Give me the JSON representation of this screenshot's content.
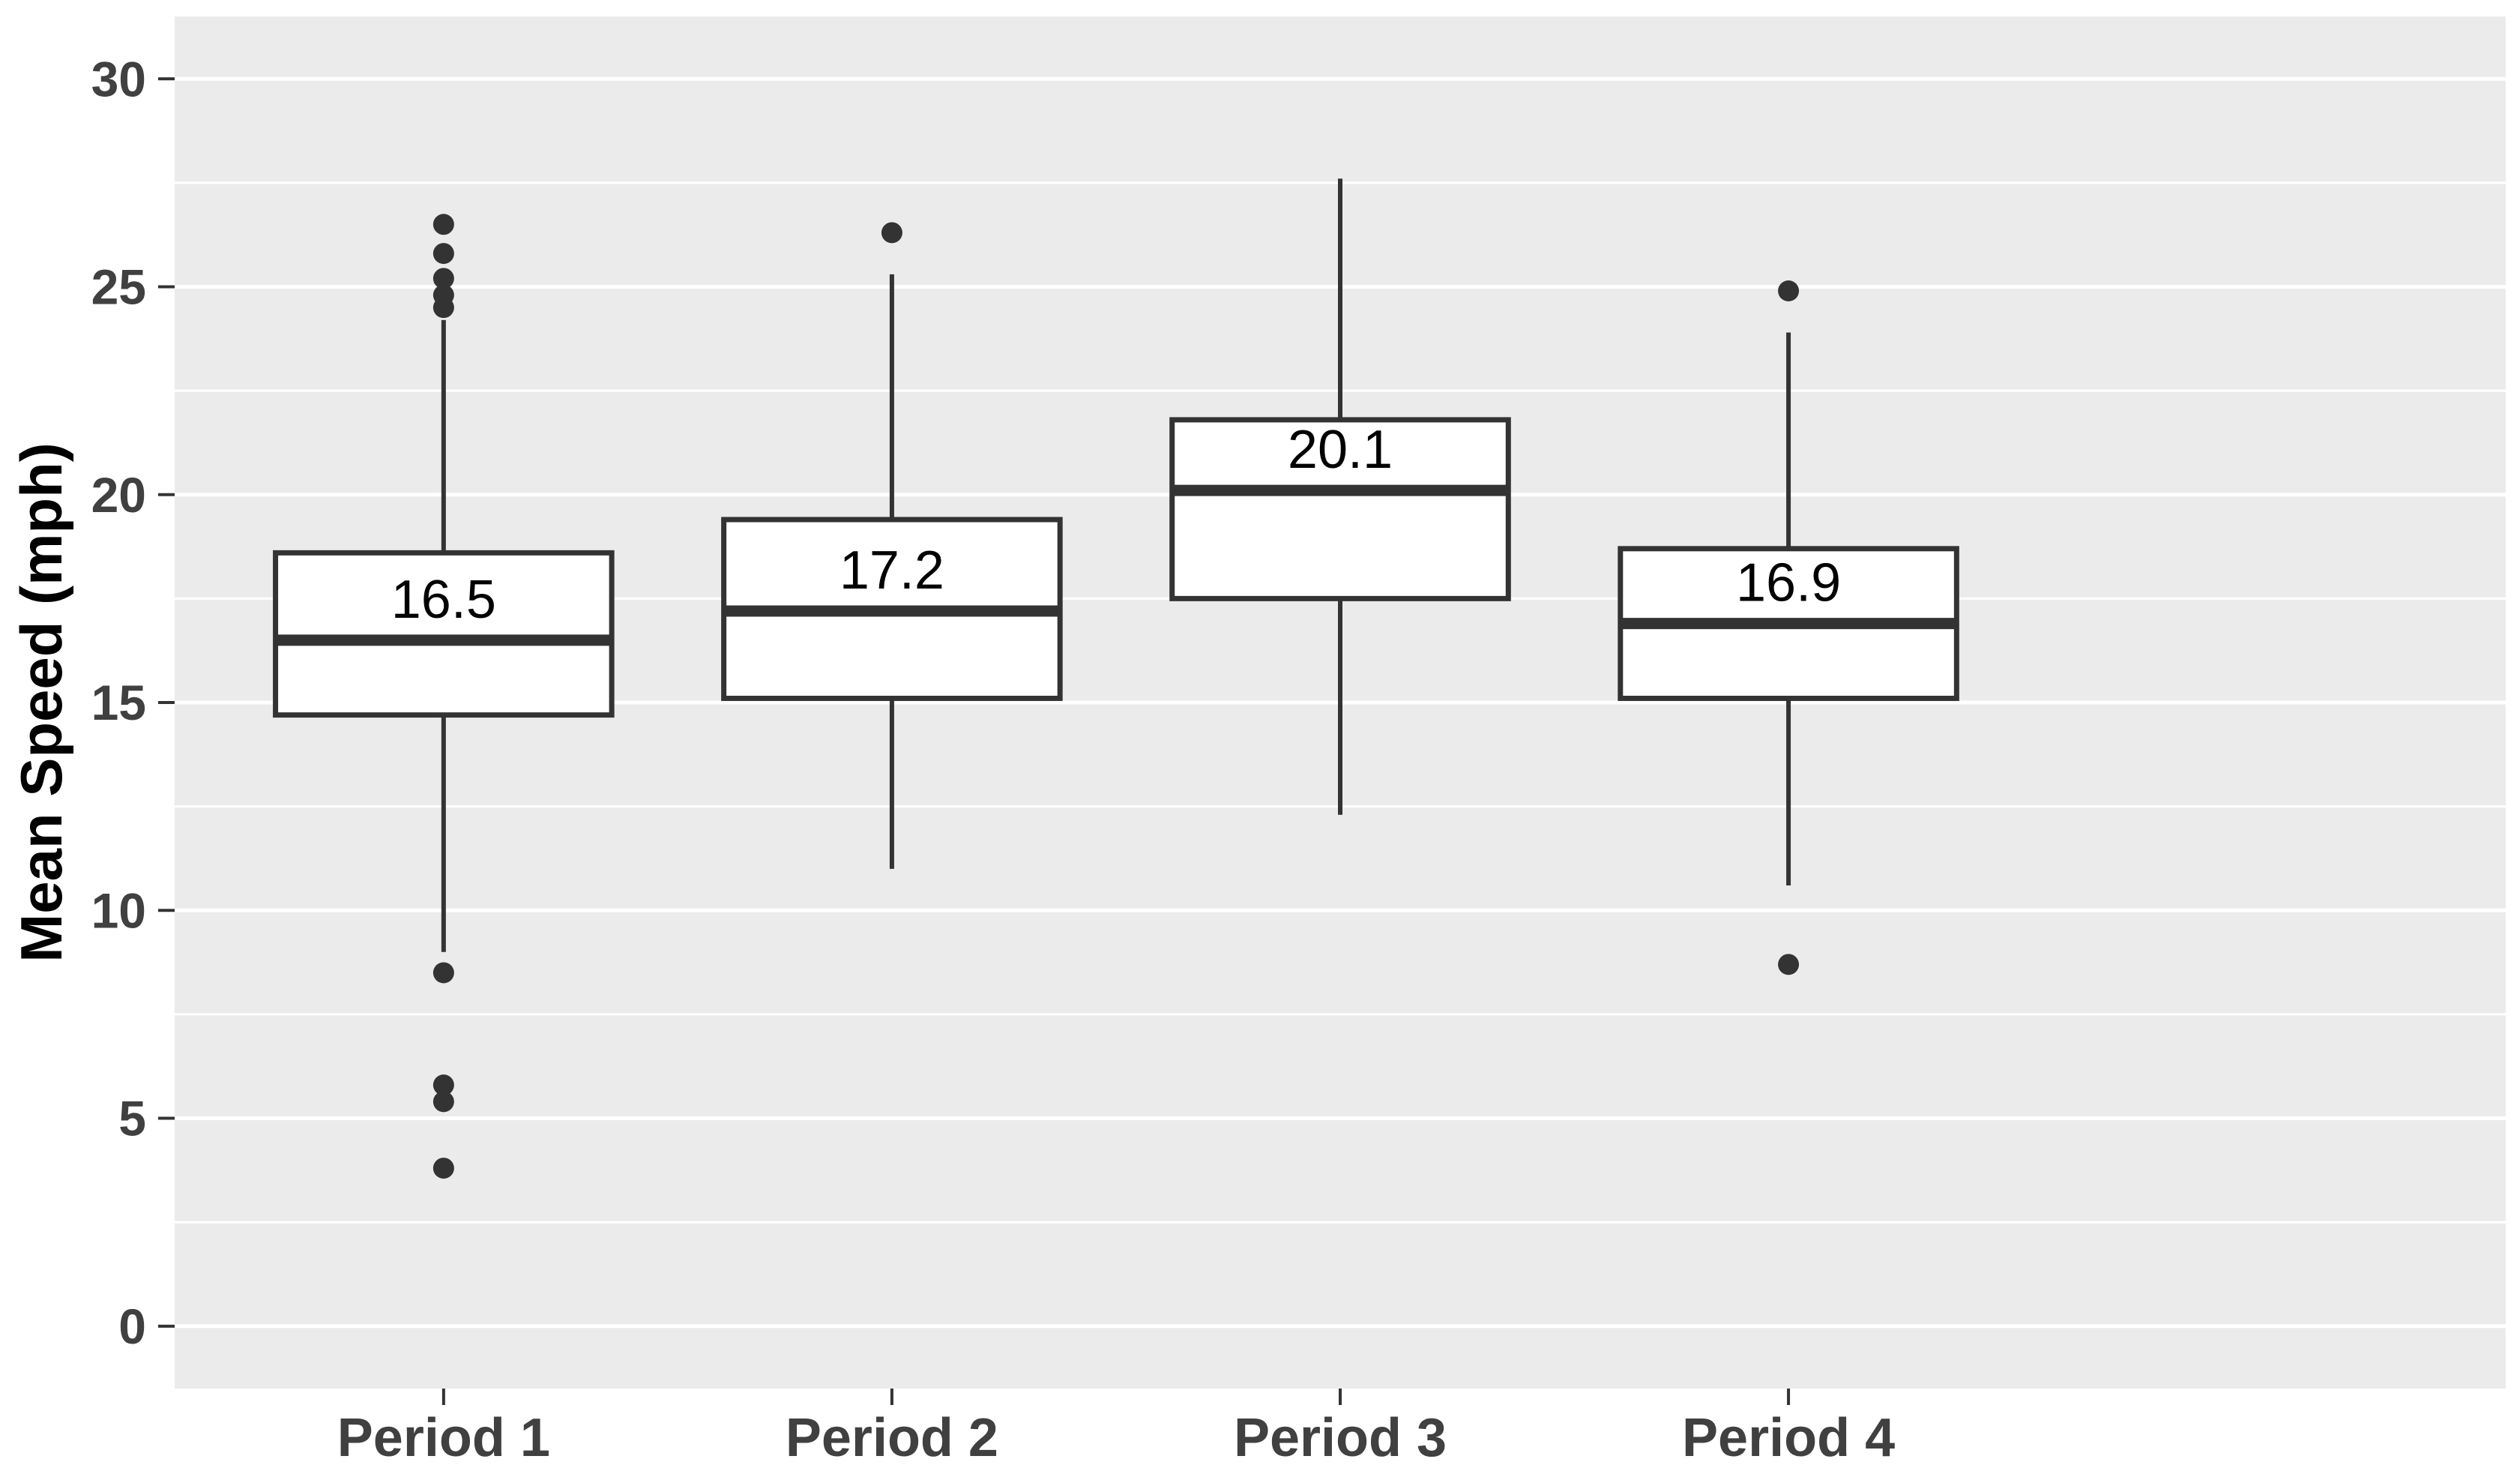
{
  "chart_data": {
    "type": "boxplot",
    "title": "",
    "xlabel": "",
    "ylabel": "Mean Speed (mph)",
    "categories": [
      "Period 1",
      "Period 2",
      "Period 3",
      "Period 4"
    ],
    "y_ticks": [
      0,
      5,
      10,
      15,
      20,
      25,
      30
    ],
    "y_minor_ticks": [
      2.5,
      7.5,
      12.5,
      17.5,
      22.5,
      27.5
    ],
    "ylim": [
      0,
      30
    ],
    "ylim_expanded": [
      -1.5,
      31.5
    ],
    "grid": "white major and minor horizontal gridlines on grey panel",
    "legend_position": "none",
    "series": [
      {
        "name": "Period 1",
        "whisker_low": 9.0,
        "q1": 14.7,
        "median": 16.5,
        "q3": 18.6,
        "whisker_high": 24.2,
        "outliers": [
          26.5,
          25.8,
          25.2,
          24.8,
          24.5,
          8.5,
          5.8,
          5.4,
          3.8
        ],
        "median_label": "16.5"
      },
      {
        "name": "Period 2",
        "whisker_low": 11.0,
        "q1": 15.1,
        "median": 17.2,
        "q3": 19.4,
        "whisker_high": 25.3,
        "outliers": [
          26.3
        ],
        "median_label": "17.2"
      },
      {
        "name": "Period 3",
        "whisker_low": 12.3,
        "q1": 17.5,
        "median": 20.1,
        "q3": 21.8,
        "whisker_high": 27.6,
        "outliers": [],
        "median_label": "20.1"
      },
      {
        "name": "Period 4",
        "whisker_low": 10.6,
        "q1": 15.1,
        "median": 16.9,
        "q3": 18.7,
        "whisker_high": 23.9,
        "outliers": [
          24.9,
          8.7
        ],
        "median_label": "16.9"
      }
    ],
    "colors": {
      "figure_bg": "#FFFFFF",
      "panel_bg": "#EBEBEB",
      "gridline": "#FFFFFF",
      "box_fill": "#FFFFFF",
      "box_stroke": "#333333",
      "whisker_stroke": "#333333",
      "outlier_fill": "#333333",
      "tick_mark": "#333333",
      "axis_text": "#404040",
      "axis_title_text": "#000000",
      "median_label_text": "#000000"
    }
  }
}
